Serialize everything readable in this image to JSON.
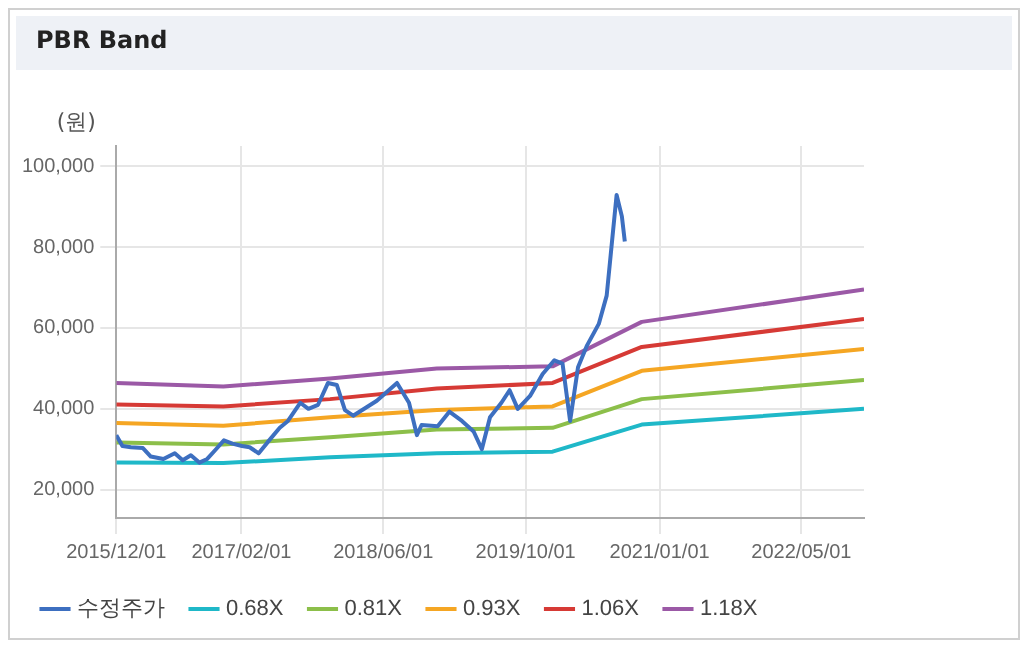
{
  "chart_data": {
    "type": "line",
    "title": "PBR Band",
    "ylabel": "(원)",
    "xlim": [
      "2015-12-01",
      "2022-12-01"
    ],
    "xticks": [
      {
        "value": "2015-12-01",
        "label": "2015/12/01"
      },
      {
        "value": "2017-02-01",
        "label": "2017/02/01"
      },
      {
        "value": "2018-06-01",
        "label": "2018/06/01"
      },
      {
        "value": "2019-10-01",
        "label": "2019/10/01"
      },
      {
        "value": "2021-01-01",
        "label": "2021/01/01"
      },
      {
        "value": "2022-05-01",
        "label": "2022/05/01"
      }
    ],
    "ylim": [
      13000,
      105000
    ],
    "yticks": [
      {
        "value": 20000,
        "label": "20,000"
      },
      {
        "value": 40000,
        "label": "40,000"
      },
      {
        "value": 60000,
        "label": "60,000"
      },
      {
        "value": 80000,
        "label": "80,000"
      },
      {
        "value": 100000,
        "label": "100,000"
      }
    ],
    "grid": true,
    "legend": "bottom",
    "marker": "none",
    "line_style": "solid",
    "series": [
      {
        "name": "수정주가",
        "color": "#3d6fc0",
        "x": [
          "2015-12-01",
          "2015-12-22",
          "2016-01-20",
          "2016-03-01",
          "2016-03-28",
          "2016-05-10",
          "2016-06-18",
          "2016-07-15",
          "2016-08-12",
          "2016-09-10",
          "2016-10-07",
          "2016-11-06",
          "2016-12-03",
          "2017-01-01",
          "2017-02-03",
          "2017-03-01",
          "2017-04-01",
          "2017-05-01",
          "2017-06-12",
          "2017-07-10",
          "2017-08-21",
          "2017-09-18",
          "2017-10-21",
          "2017-11-24",
          "2017-12-24",
          "2018-01-21",
          "2018-02-18",
          "2018-05-10",
          "2018-07-18",
          "2018-08-28",
          "2018-09-24",
          "2018-10-10",
          "2018-12-04",
          "2019-01-13",
          "2019-02-25",
          "2019-04-06",
          "2019-05-04",
          "2019-06-01",
          "2019-07-10",
          "2019-08-07",
          "2019-09-04",
          "2019-10-16",
          "2019-11-28",
          "2020-01-07",
          "2020-02-04",
          "2020-03-01",
          "2020-03-28",
          "2020-04-28",
          "2020-06-07",
          "2020-07-04",
          "2020-08-07",
          "2020-08-25",
          "2020-09-04"
        ],
        "values": [
          33500,
          30800,
          30500,
          30300,
          28200,
          27600,
          29000,
          27300,
          28500,
          26700,
          27600,
          30000,
          32200,
          31400,
          30800,
          30500,
          29000,
          31700,
          35300,
          37000,
          41500,
          40000,
          41000,
          46400,
          45900,
          39700,
          38300,
          42000,
          46400,
          41500,
          33500,
          36000,
          35700,
          39300,
          37000,
          34400,
          30000,
          37900,
          41500,
          44600,
          40000,
          43200,
          48600,
          52000,
          51200,
          37000,
          50300,
          55700,
          61000,
          68000,
          92900,
          87600,
          81400
        ]
      },
      {
        "name": "0.68X",
        "color": "#1fb8c8",
        "x": [
          "2015-12-01",
          "2016-12-01",
          "2017-12-01",
          "2018-12-01",
          "2020-01-01",
          "2020-11-01",
          "2022-12-01"
        ],
        "values": [
          26700,
          26600,
          28000,
          29000,
          29400,
          36100,
          40000
        ]
      },
      {
        "name": "0.81X",
        "color": "#8cbf4a",
        "x": [
          "2015-12-01",
          "2016-12-01",
          "2017-12-01",
          "2018-12-01",
          "2020-01-01",
          "2020-11-01",
          "2022-12-01"
        ],
        "values": [
          31700,
          31200,
          33000,
          34900,
          35300,
          42400,
          47100
        ]
      },
      {
        "name": "0.93X",
        "color": "#f5a623",
        "x": [
          "2015-12-01",
          "2016-12-01",
          "2017-12-01",
          "2018-12-01",
          "2020-01-01",
          "2020-11-01",
          "2022-12-01"
        ],
        "values": [
          36500,
          35800,
          37900,
          39700,
          40600,
          49400,
          54800
        ]
      },
      {
        "name": "1.06X",
        "color": "#d63a35",
        "x": [
          "2015-12-01",
          "2016-12-01",
          "2017-12-01",
          "2018-12-01",
          "2020-01-01",
          "2020-11-01",
          "2022-12-01"
        ],
        "values": [
          41100,
          40600,
          42400,
          45000,
          46400,
          55300,
          62200
        ]
      },
      {
        "name": "1.18X",
        "color": "#9b59a6",
        "x": [
          "2015-12-01",
          "2016-12-01",
          "2017-12-01",
          "2018-12-01",
          "2020-01-01",
          "2020-11-01",
          "2022-12-01"
        ],
        "values": [
          46400,
          45500,
          47500,
          50000,
          50500,
          61500,
          69500
        ]
      }
    ]
  }
}
